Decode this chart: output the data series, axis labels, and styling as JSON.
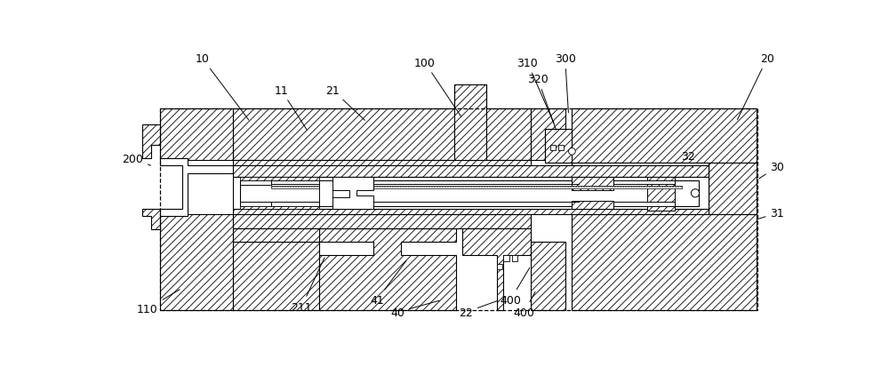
{
  "fig_width": 10.0,
  "fig_height": 4.14,
  "dpi": 100,
  "bg_color": "#ffffff",
  "annotations": [
    [
      "10",
      130,
      22,
      200,
      115
    ],
    [
      "11",
      245,
      68,
      285,
      130
    ],
    [
      "21",
      320,
      68,
      370,
      115
    ],
    [
      "100",
      455,
      28,
      510,
      110
    ],
    [
      "200",
      28,
      168,
      58,
      180
    ],
    [
      "110",
      50,
      388,
      100,
      358
    ],
    [
      "211",
      275,
      385,
      310,
      310
    ],
    [
      "41",
      385,
      375,
      430,
      315
    ],
    [
      "40",
      415,
      393,
      480,
      375
    ],
    [
      "22",
      515,
      393,
      565,
      375
    ],
    [
      "400",
      580,
      375,
      610,
      325
    ],
    [
      "400",
      600,
      393,
      618,
      360
    ],
    [
      "310",
      605,
      28,
      645,
      120
    ],
    [
      "300",
      660,
      22,
      665,
      105
    ],
    [
      "320",
      620,
      52,
      648,
      130
    ],
    [
      "20",
      955,
      22,
      910,
      115
    ],
    [
      "30",
      970,
      180,
      940,
      200
    ],
    [
      "31",
      970,
      248,
      938,
      258
    ],
    [
      "32",
      840,
      165,
      848,
      185
    ]
  ]
}
